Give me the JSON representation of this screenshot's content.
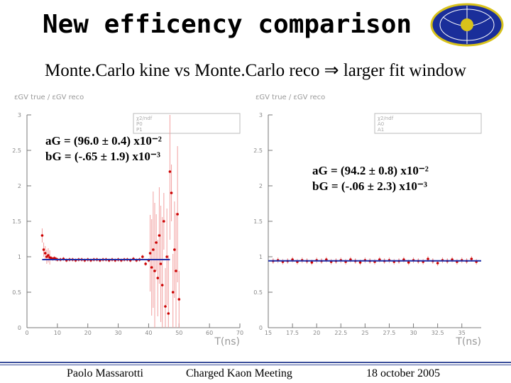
{
  "title": "New efficency comparison",
  "subtitle": "Monte.Carlo kine vs Monte.Carlo reco ⇒ larger fit window",
  "footer": {
    "author": "Paolo Massarotti",
    "meeting": "Charged Kaon Meeting",
    "date": "18 october 2005"
  },
  "colors": {
    "points": "#cc0000",
    "errors": "#f2a0a0",
    "fit": "#1e2ea8",
    "axes": "#777777",
    "footer_line": "#3c4f9c"
  },
  "logo": {
    "icon": "experiment-logo-icon"
  },
  "chart_data": [
    {
      "type": "scatter",
      "ylabel": "εGV true / εGV reco",
      "xlabel": "T(ns)",
      "xlim": [
        0,
        70
      ],
      "ylim": [
        0,
        3
      ],
      "xticks": [
        "0",
        "10",
        "20",
        "30",
        "40",
        "50",
        "60",
        "70"
      ],
      "yticks": [
        "0",
        "0.5",
        "1",
        "1.5",
        "2",
        "2.5",
        "3"
      ],
      "stat_box": [
        "χ2/ndf",
        "P0",
        "P1"
      ],
      "fit_params": {
        "a_label": "aG = (96.0 ± 0.4) x10⁻²",
        "b_label": "bG = (-.65 ± 1.9) x10⁻³"
      },
      "series": [
        {
          "x": [
            5,
            5.5,
            6,
            6.5,
            7,
            7.5,
            8,
            8.5,
            9,
            9.5,
            10,
            11,
            12,
            13,
            14,
            15,
            16,
            17,
            18,
            19,
            20,
            21,
            22,
            23,
            24,
            25,
            26,
            27,
            28,
            29,
            30,
            31,
            32,
            33,
            34,
            35,
            36,
            37,
            38,
            39,
            40,
            40.5,
            41,
            41.5,
            42,
            42.5,
            43,
            43.5,
            44,
            44.5,
            45,
            45.5,
            46,
            46.5,
            47,
            47.5,
            48,
            48.5,
            49,
            49.5,
            50
          ],
          "y": [
            1.3,
            1.1,
            1.05,
            1.0,
            1.02,
            0.99,
            0.98,
            0.97,
            0.98,
            0.97,
            0.96,
            0.96,
            0.97,
            0.95,
            0.96,
            0.96,
            0.95,
            0.96,
            0.96,
            0.95,
            0.96,
            0.95,
            0.96,
            0.96,
            0.95,
            0.96,
            0.96,
            0.95,
            0.96,
            0.95,
            0.96,
            0.95,
            0.96,
            0.96,
            0.95,
            0.97,
            0.95,
            0.96,
            1.0,
            0.9,
            0.95,
            1.05,
            0.85,
            1.1,
            0.8,
            1.2,
            0.7,
            1.3,
            0.9,
            0.6,
            1.5,
            0.3,
            1.0,
            0.2,
            2.2,
            1.9,
            0.5,
            1.1,
            0.8,
            1.6,
            0.4
          ]
        }
      ],
      "fit_line": {
        "x": [
          5,
          47
        ],
        "y": [
          0.96,
          0.96
        ]
      }
    },
    {
      "type": "scatter",
      "ylabel": "εGV true / εGV reco",
      "xlabel": "T(ns)",
      "xlim": [
        15,
        37
      ],
      "ylim": [
        0,
        3
      ],
      "xticks": [
        "15",
        "17.5",
        "20",
        "22.5",
        "25",
        "27.5",
        "30",
        "32.5",
        "35"
      ],
      "yticks": [
        "0",
        "0.5",
        "1",
        "1.5",
        "2",
        "2.5",
        "3"
      ],
      "stat_box": [
        "χ2/ndf",
        "A0",
        "A1"
      ],
      "fit_params": {
        "a_label": "aG = (94.2 ± 0.8) x10⁻²",
        "b_label": "bG = (-.06 ± 2.3) x10⁻³"
      },
      "series": [
        {
          "x": [
            15.5,
            16,
            16.5,
            17,
            17.5,
            18,
            18.5,
            19,
            19.5,
            20,
            20.5,
            21,
            21.5,
            22,
            22.5,
            23,
            23.5,
            24,
            24.5,
            25,
            25.5,
            26,
            26.5,
            27,
            27.5,
            28,
            28.5,
            29,
            29.5,
            30,
            30.5,
            31,
            31.5,
            32,
            32.5,
            33,
            33.5,
            34,
            34.5,
            35,
            35.5,
            36,
            36.5
          ],
          "y": [
            0.94,
            0.95,
            0.93,
            0.94,
            0.96,
            0.93,
            0.95,
            0.94,
            0.92,
            0.95,
            0.94,
            0.96,
            0.93,
            0.94,
            0.95,
            0.93,
            0.96,
            0.94,
            0.92,
            0.95,
            0.94,
            0.93,
            0.96,
            0.94,
            0.95,
            0.93,
            0.94,
            0.96,
            0.92,
            0.95,
            0.94,
            0.93,
            0.97,
            0.94,
            0.91,
            0.95,
            0.94,
            0.96,
            0.93,
            0.95,
            0.94,
            0.97,
            0.93
          ]
        }
      ],
      "fit_line": {
        "x": [
          15,
          37
        ],
        "y": [
          0.942,
          0.942
        ]
      }
    }
  ]
}
